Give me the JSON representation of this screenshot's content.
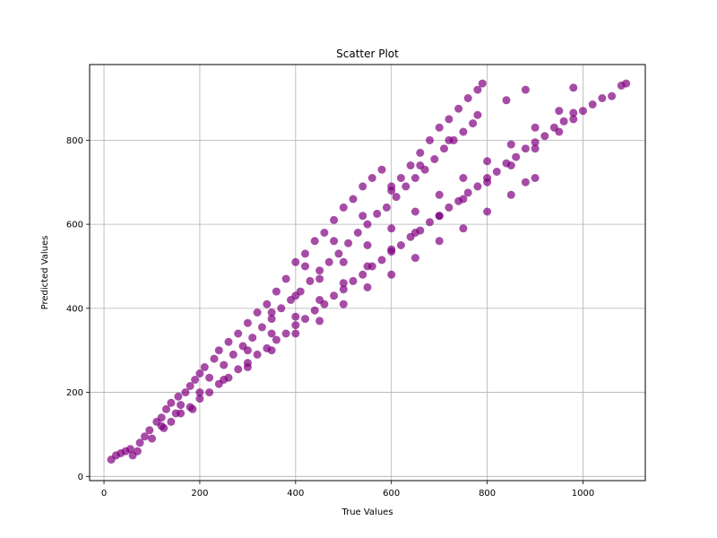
{
  "chart_data": {
    "type": "scatter",
    "title": "Scatter Plot",
    "xlabel": "True Values",
    "ylabel": "Predicted Values",
    "xlim": [
      -30,
      1130
    ],
    "ylim": [
      -10,
      980
    ],
    "xticks": [
      0,
      200,
      400,
      600,
      800,
      1000
    ],
    "yticks": [
      0,
      200,
      400,
      600,
      800
    ],
    "grid": true,
    "marker_color": "#800080",
    "marker_alpha": 0.7,
    "series": [
      {
        "values": [
          [
            15,
            40
          ],
          [
            25,
            50
          ],
          [
            35,
            55
          ],
          [
            45,
            60
          ],
          [
            55,
            65
          ],
          [
            60,
            50
          ],
          [
            70,
            60
          ],
          [
            75,
            80
          ],
          [
            85,
            95
          ],
          [
            95,
            110
          ],
          [
            100,
            90
          ],
          [
            110,
            130
          ],
          [
            120,
            140
          ],
          [
            125,
            115
          ],
          [
            130,
            160
          ],
          [
            140,
            175
          ],
          [
            150,
            150
          ],
          [
            155,
            190
          ],
          [
            160,
            170
          ],
          [
            170,
            200
          ],
          [
            180,
            215
          ],
          [
            185,
            160
          ],
          [
            190,
            230
          ],
          [
            200,
            245
          ],
          [
            210,
            260
          ],
          [
            220,
            235
          ],
          [
            230,
            280
          ],
          [
            240,
            300
          ],
          [
            250,
            265
          ],
          [
            260,
            320
          ],
          [
            270,
            290
          ],
          [
            280,
            340
          ],
          [
            290,
            310
          ],
          [
            300,
            365
          ],
          [
            310,
            330
          ],
          [
            320,
            390
          ],
          [
            330,
            355
          ],
          [
            340,
            410
          ],
          [
            350,
            375
          ],
          [
            360,
            440
          ],
          [
            370,
            400
          ],
          [
            380,
            470
          ],
          [
            390,
            420
          ],
          [
            400,
            510
          ],
          [
            410,
            440
          ],
          [
            420,
            530
          ],
          [
            430,
            465
          ],
          [
            440,
            560
          ],
          [
            450,
            490
          ],
          [
            460,
            580
          ],
          [
            470,
            510
          ],
          [
            480,
            610
          ],
          [
            490,
            530
          ],
          [
            500,
            640
          ],
          [
            510,
            555
          ],
          [
            520,
            660
          ],
          [
            530,
            580
          ],
          [
            540,
            690
          ],
          [
            550,
            600
          ],
          [
            560,
            710
          ],
          [
            570,
            625
          ],
          [
            580,
            730
          ],
          [
            590,
            640
          ],
          [
            600,
            690
          ],
          [
            610,
            665
          ],
          [
            620,
            710
          ],
          [
            630,
            690
          ],
          [
            640,
            740
          ],
          [
            650,
            710
          ],
          [
            660,
            770
          ],
          [
            670,
            730
          ],
          [
            680,
            800
          ],
          [
            690,
            755
          ],
          [
            700,
            830
          ],
          [
            710,
            780
          ],
          [
            720,
            850
          ],
          [
            730,
            800
          ],
          [
            740,
            875
          ],
          [
            750,
            820
          ],
          [
            760,
            900
          ],
          [
            770,
            840
          ],
          [
            780,
            920
          ],
          [
            790,
            935
          ],
          [
            120,
            120
          ],
          [
            140,
            130
          ],
          [
            160,
            150
          ],
          [
            180,
            165
          ],
          [
            200,
            185
          ],
          [
            220,
            200
          ],
          [
            240,
            220
          ],
          [
            260,
            235
          ],
          [
            280,
            255
          ],
          [
            300,
            270
          ],
          [
            320,
            290
          ],
          [
            340,
            305
          ],
          [
            360,
            325
          ],
          [
            380,
            340
          ],
          [
            400,
            360
          ],
          [
            420,
            375
          ],
          [
            440,
            395
          ],
          [
            460,
            410
          ],
          [
            480,
            430
          ],
          [
            500,
            445
          ],
          [
            520,
            465
          ],
          [
            540,
            480
          ],
          [
            560,
            500
          ],
          [
            580,
            515
          ],
          [
            600,
            535
          ],
          [
            620,
            550
          ],
          [
            640,
            570
          ],
          [
            660,
            585
          ],
          [
            680,
            605
          ],
          [
            700,
            620
          ],
          [
            720,
            640
          ],
          [
            740,
            655
          ],
          [
            760,
            675
          ],
          [
            780,
            690
          ],
          [
            800,
            710
          ],
          [
            820,
            725
          ],
          [
            840,
            745
          ],
          [
            860,
            760
          ],
          [
            880,
            780
          ],
          [
            900,
            795
          ],
          [
            920,
            810
          ],
          [
            940,
            830
          ],
          [
            960,
            845
          ],
          [
            980,
            865
          ],
          [
            1000,
            870
          ],
          [
            1020,
            885
          ],
          [
            1040,
            900
          ],
          [
            1060,
            905
          ],
          [
            1080,
            930
          ],
          [
            1090,
            935
          ],
          [
            200,
            200
          ],
          [
            250,
            230
          ],
          [
            300,
            260
          ],
          [
            350,
            300
          ],
          [
            400,
            340
          ],
          [
            450,
            370
          ],
          [
            500,
            410
          ],
          [
            550,
            450
          ],
          [
            600,
            480
          ],
          [
            650,
            520
          ],
          [
            700,
            560
          ],
          [
            750,
            590
          ],
          [
            800,
            630
          ],
          [
            850,
            670
          ],
          [
            880,
            700
          ],
          [
            900,
            710
          ],
          [
            300,
            300
          ],
          [
            350,
            340
          ],
          [
            400,
            380
          ],
          [
            450,
            420
          ],
          [
            500,
            460
          ],
          [
            550,
            500
          ],
          [
            600,
            540
          ],
          [
            650,
            580
          ],
          [
            700,
            620
          ],
          [
            750,
            660
          ],
          [
            800,
            700
          ],
          [
            850,
            740
          ],
          [
            900,
            780
          ],
          [
            950,
            820
          ],
          [
            980,
            850
          ],
          [
            350,
            390
          ],
          [
            400,
            430
          ],
          [
            450,
            470
          ],
          [
            500,
            510
          ],
          [
            550,
            550
          ],
          [
            600,
            590
          ],
          [
            650,
            630
          ],
          [
            700,
            670
          ],
          [
            750,
            710
          ],
          [
            800,
            750
          ],
          [
            850,
            790
          ],
          [
            900,
            830
          ],
          [
            950,
            870
          ],
          [
            980,
            925
          ],
          [
            420,
            500
          ],
          [
            480,
            560
          ],
          [
            540,
            620
          ],
          [
            600,
            680
          ],
          [
            660,
            740
          ],
          [
            720,
            800
          ],
          [
            780,
            860
          ],
          [
            840,
            895
          ],
          [
            880,
            920
          ]
        ]
      }
    ]
  }
}
